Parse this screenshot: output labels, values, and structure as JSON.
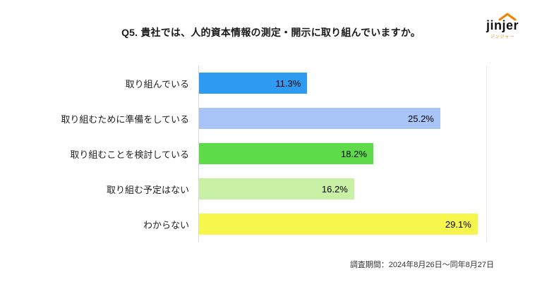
{
  "header": {
    "title": "Q5. 貴社では、人的資本情報の測定・開示に取り組んでいますか。",
    "logo": {
      "text": "jinjer",
      "subtext": "ジンジャー",
      "accent_color": "#f08300"
    }
  },
  "chart_data": {
    "type": "bar",
    "orientation": "horizontal",
    "title": "Q5. 貴社では、人的資本情報の測定・開示に取り組んでいますか。",
    "categories": [
      "取り組んでいる",
      "取り組むために準備をしている",
      "取り組むことを検討している",
      "取り組む予定はない",
      "わからない"
    ],
    "values": [
      11.3,
      25.2,
      18.2,
      16.2,
      29.1
    ],
    "value_labels": [
      "11.3%",
      "25.2%",
      "18.2%",
      "16.2%",
      "29.1%"
    ],
    "bar_colors": [
      "#2e9bf0",
      "#a9c5f7",
      "#5edb49",
      "#c9f1a5",
      "#f6f64d"
    ],
    "xlabel": "",
    "ylabel": "",
    "xlim": [
      0,
      30
    ],
    "grid": "left and right vertical edge lines only",
    "legend": "none"
  },
  "footer": {
    "survey_period": "調査期間：2024年8月26日～同年8月27日"
  }
}
